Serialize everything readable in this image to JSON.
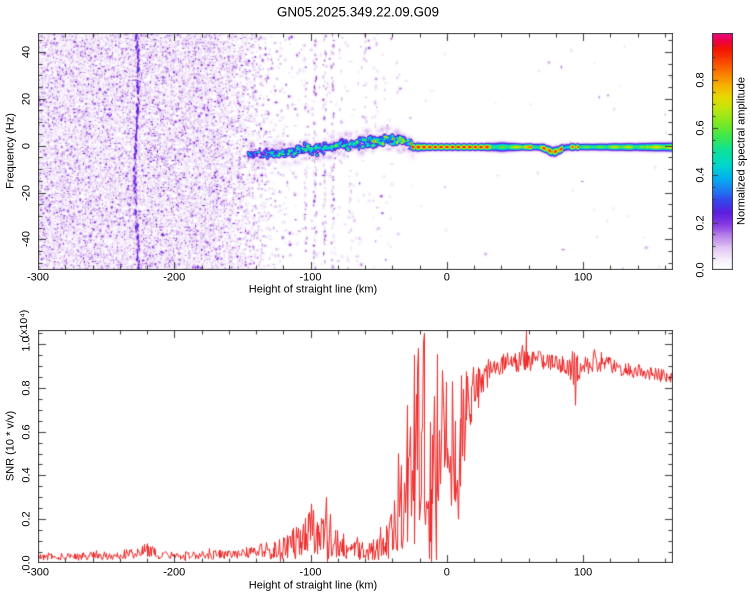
{
  "title": "GN05.2025.349.22.09.G09",
  "colors": {
    "background": "#ffffff",
    "axis": "#3c3c3c",
    "snr_line": "#ee2b2b"
  },
  "chart_data": [
    {
      "type": "heatmap",
      "name": "spectrogram",
      "xlabel": "Height of straight line (km)",
      "ylabel": "Frequency (Hz)",
      "xlim": [
        -300,
        166
      ],
      "ylim": [
        -53,
        48
      ],
      "xticks": [
        -300,
        -200,
        -100,
        0,
        100
      ],
      "xtick_minor_step": 20,
      "yticks": [
        40,
        20,
        0,
        -20,
        -40
      ],
      "ytick_minor_step": 5,
      "colorbar": {
        "label": "Normalized spectral amplitude",
        "tick_labels": [
          "0.0",
          "0.2",
          "0.4",
          "0.6",
          "0.8"
        ],
        "tick_values": [
          0,
          0.2,
          0.4,
          0.6,
          0.8
        ],
        "minor_step": 0.05,
        "lim": [
          0,
          1
        ]
      },
      "colormap_stops": [
        [
          0.0,
          "#ffffff"
        ],
        [
          0.04,
          "#f6eefb"
        ],
        [
          0.09,
          "#e0c5f3"
        ],
        [
          0.14,
          "#b884ea"
        ],
        [
          0.19,
          "#8438e2"
        ],
        [
          0.24,
          "#5a1ee0"
        ],
        [
          0.29,
          "#3348ec"
        ],
        [
          0.34,
          "#1b82f2"
        ],
        [
          0.39,
          "#00b4ee"
        ],
        [
          0.44,
          "#00d8cc"
        ],
        [
          0.5,
          "#0ce29a"
        ],
        [
          0.56,
          "#3ae84e"
        ],
        [
          0.62,
          "#7ee822"
        ],
        [
          0.68,
          "#c0e60e"
        ],
        [
          0.73,
          "#e8d800"
        ],
        [
          0.78,
          "#f8ae00"
        ],
        [
          0.83,
          "#fa7a00"
        ],
        [
          0.88,
          "#f94400"
        ],
        [
          0.93,
          "#f41500"
        ],
        [
          0.97,
          "#ee0048"
        ],
        [
          1.0,
          "#e70f8e"
        ]
      ],
      "noise": {
        "x_range": [
          -300,
          -40
        ],
        "dense_until": -172,
        "fade_mid": -148,
        "fade_end": -128,
        "description": "dense purple speckle noise filling left third of panel"
      },
      "dark_streak_km": -228,
      "faint_streak_km": -213,
      "vertical_streaks": [
        [
          -142,
          48,
          -53,
          0.3
        ],
        [
          -104,
          48,
          -53,
          0.33
        ],
        [
          -97,
          48,
          -53,
          0.5
        ],
        [
          -90,
          48,
          -53,
          0.45
        ],
        [
          -84,
          48,
          -53,
          0.38
        ],
        [
          -78,
          48,
          -10,
          0.22
        ],
        [
          -71,
          -8,
          -53,
          0.2
        ],
        [
          -60,
          48,
          4,
          0.28
        ],
        [
          -52,
          48,
          8,
          0.22
        ],
        [
          -47,
          30,
          6,
          0.18
        ],
        [
          -36,
          48,
          20,
          0.15
        ]
      ],
      "band": {
        "x_range": [
          -146,
          -26
        ],
        "freq_spread_hz": 4,
        "center_freq": [
          [
            -146,
            -4
          ],
          [
            -130,
            -3
          ],
          [
            -115,
            -2.5
          ],
          [
            -100,
            -1.5
          ],
          [
            -85,
            -0.5
          ],
          [
            -70,
            0.8
          ],
          [
            -55,
            2
          ],
          [
            -42,
            2.8
          ],
          [
            -32,
            2.2
          ],
          [
            -26,
            0.3
          ]
        ]
      },
      "ridge": {
        "x_range": [
          -26,
          166
        ],
        "freq": -0.4,
        "dip": {
          "x": 78,
          "depth_hz": -2.0,
          "width_km": 6
        },
        "segments": [
          [
            -26,
            32,
            0.95
          ],
          [
            32,
            46,
            0.6
          ],
          [
            46,
            56,
            0.72
          ],
          [
            56,
            62,
            0.85
          ],
          [
            62,
            68,
            0.6
          ],
          [
            68,
            85,
            0.92
          ],
          [
            85,
            90,
            0.5
          ],
          [
            90,
            97,
            0.88
          ],
          [
            97,
            118,
            0.62
          ],
          [
            118,
            136,
            0.7
          ],
          [
            136,
            146,
            0.63
          ],
          [
            146,
            166,
            0.74
          ]
        ],
        "red_dash_ranges": [
          [
            -26,
            32
          ],
          [
            68,
            85
          ],
          [
            90,
            97
          ]
        ]
      }
    },
    {
      "type": "line",
      "name": "snr",
      "xlabel": "Height of straight line (km)",
      "ylabel": "SNR (10 * v/v)",
      "scale_label": "(x10⁴)",
      "xlim": [
        -300,
        166
      ],
      "ylim": [
        0,
        1.064
      ],
      "xticks": [
        -300,
        -200,
        -100,
        0,
        100
      ],
      "xtick_minor_step": 20,
      "ytick_labels": [
        "0.0",
        "0.2",
        "0.4",
        "0.6",
        "0.8",
        "1.0"
      ],
      "ytick_values": [
        0,
        0.2,
        0.4,
        0.6,
        0.8,
        1.0
      ],
      "ytick_minor_step": 0.05,
      "line_color": "#ee2b2b",
      "envelope": [
        [
          -300,
          0.03,
          0.018
        ],
        [
          -272,
          0.028,
          0.016
        ],
        [
          -256,
          0.036,
          0.022
        ],
        [
          -244,
          0.03,
          0.017
        ],
        [
          -230,
          0.048,
          0.028
        ],
        [
          -221,
          0.058,
          0.034
        ],
        [
          -212,
          0.04,
          0.022
        ],
        [
          -198,
          0.032,
          0.018
        ],
        [
          -180,
          0.035,
          0.02
        ],
        [
          -162,
          0.038,
          0.022
        ],
        [
          -148,
          0.042,
          0.026
        ],
        [
          -136,
          0.055,
          0.038
        ],
        [
          -126,
          0.065,
          0.048
        ],
        [
          -116,
          0.08,
          0.062
        ],
        [
          -107,
          0.105,
          0.09
        ],
        [
          -99,
          0.13,
          0.115
        ],
        [
          -91,
          0.14,
          0.125
        ],
        [
          -84,
          0.115,
          0.1
        ],
        [
          -77,
          0.08,
          0.06
        ],
        [
          -69,
          0.058,
          0.042
        ],
        [
          -61,
          0.05,
          0.038
        ],
        [
          -54,
          0.062,
          0.05
        ],
        [
          -47,
          0.085,
          0.072
        ],
        [
          -41,
          0.12,
          0.105
        ],
        [
          -35,
          0.22,
          0.2
        ],
        [
          -29,
          0.34,
          0.31
        ],
        [
          -24,
          0.47,
          0.43
        ],
        [
          -19,
          0.56,
          0.5
        ],
        [
          -15,
          0.52,
          0.49
        ],
        [
          -11,
          0.48,
          0.46
        ],
        [
          -7,
          0.56,
          0.4
        ],
        [
          -3,
          0.62,
          0.33
        ],
        [
          1,
          0.62,
          0.32
        ],
        [
          5,
          0.58,
          0.33
        ],
        [
          9,
          0.56,
          0.3
        ],
        [
          13,
          0.66,
          0.24
        ],
        [
          17,
          0.73,
          0.17
        ],
        [
          21,
          0.79,
          0.12
        ],
        [
          26,
          0.845,
          0.08
        ],
        [
          31,
          0.88,
          0.055
        ],
        [
          37,
          0.9,
          0.048
        ],
        [
          45,
          0.915,
          0.047
        ],
        [
          52,
          0.925,
          0.055
        ],
        [
          58,
          0.94,
          0.075
        ],
        [
          63,
          0.93,
          0.048
        ],
        [
          70,
          0.92,
          0.042
        ],
        [
          80,
          0.915,
          0.04
        ],
        [
          88,
          0.905,
          0.048
        ],
        [
          94,
          0.885,
          0.08
        ],
        [
          100,
          0.9,
          0.04
        ],
        [
          107,
          0.905,
          0.055
        ],
        [
          112,
          0.92,
          0.048
        ],
        [
          120,
          0.9,
          0.036
        ],
        [
          130,
          0.885,
          0.034
        ],
        [
          140,
          0.875,
          0.032
        ],
        [
          150,
          0.865,
          0.03
        ],
        [
          158,
          0.855,
          0.03
        ],
        [
          166,
          0.845,
          0.03
        ]
      ],
      "spikes": [
        [
          -222,
          0.085
        ],
        [
          -100,
          0.27
        ],
        [
          -89,
          0.3
        ],
        [
          -36,
          0.5
        ],
        [
          -29,
          0.72
        ],
        [
          -24,
          0.95
        ],
        [
          -17,
          1.05
        ],
        [
          -13,
          0.02
        ],
        [
          -8,
          0.015
        ],
        [
          8,
          0.2
        ],
        [
          58,
          1.062
        ],
        [
          94,
          0.72
        ],
        [
          108,
          0.975
        ]
      ]
    }
  ]
}
